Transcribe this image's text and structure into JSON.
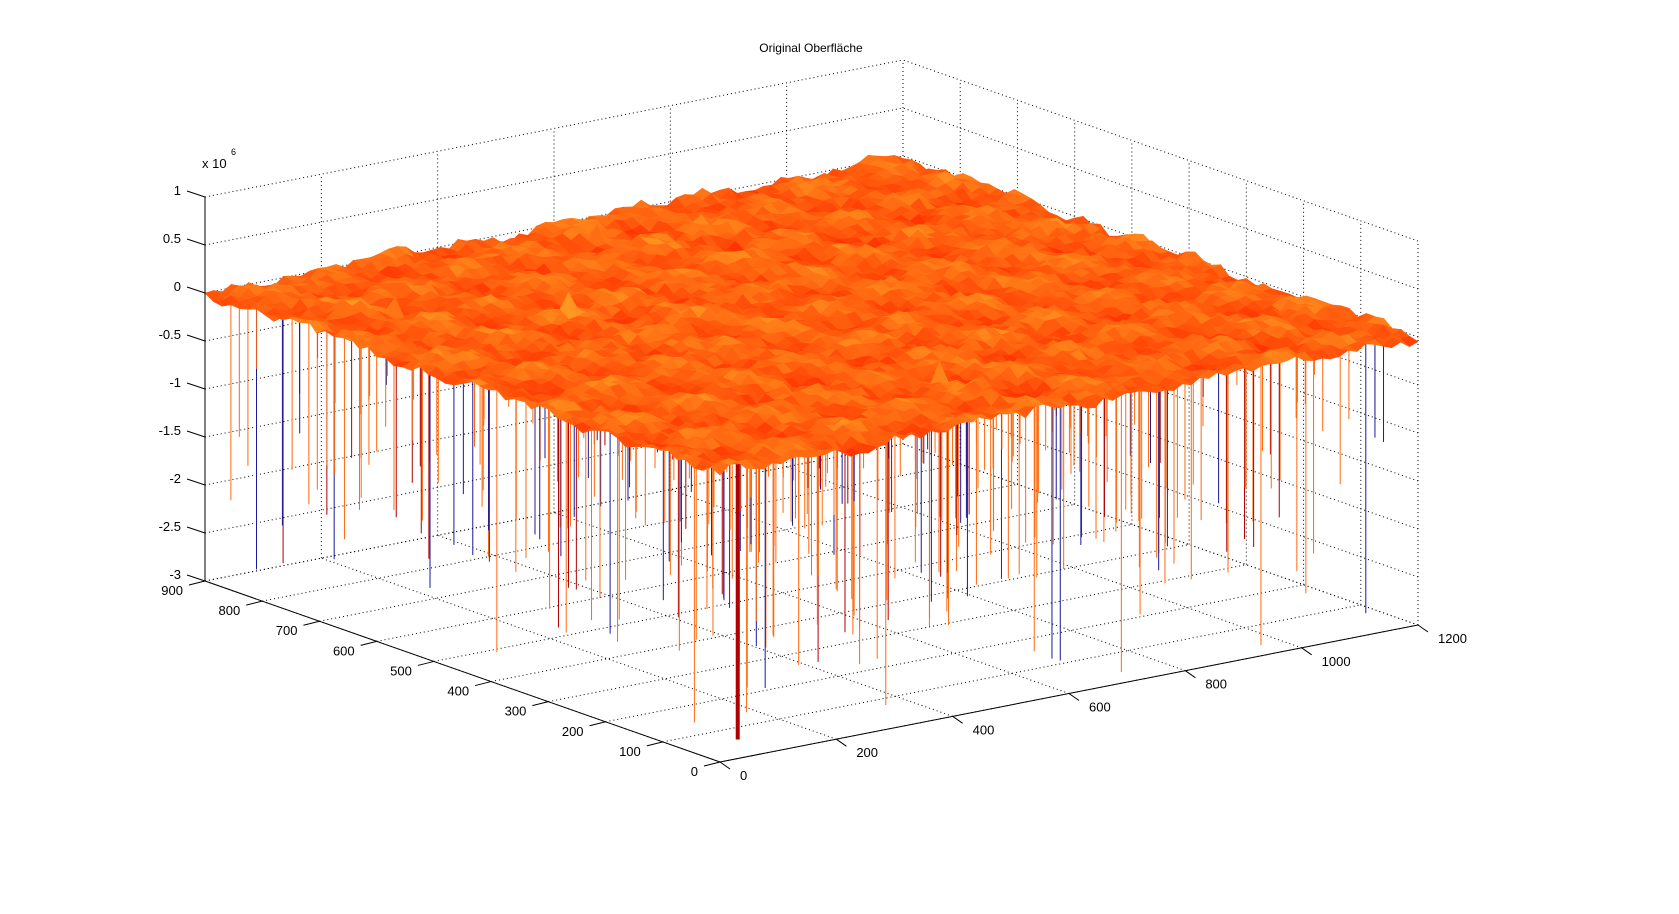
{
  "chart_data": {
    "type": "surface",
    "title": "Original Oberfläche",
    "z_exponent_label": "x 10",
    "z_exponent_power": "6",
    "xlim": [
      0,
      1200
    ],
    "ylim": [
      0,
      900
    ],
    "zlim": [
      -3000000,
      1000000
    ],
    "x_ticks": [
      "0",
      "200",
      "400",
      "600",
      "800",
      "1000",
      "1200"
    ],
    "y_ticks": [
      "0",
      "100",
      "200",
      "300",
      "400",
      "500",
      "600",
      "700",
      "800",
      "900"
    ],
    "z_ticks": [
      "1",
      "0.5",
      "0",
      "-0.5",
      "-1",
      "-1.5",
      "-2",
      "-2.5",
      "-3"
    ],
    "grid": true,
    "colors": {
      "surface_low": "#ff3300",
      "surface_high": "#ff9a22",
      "spike_orange": "#ff6a10",
      "spike_blue": "#1a1a9a",
      "spike_darkred": "#b00000"
    }
  }
}
